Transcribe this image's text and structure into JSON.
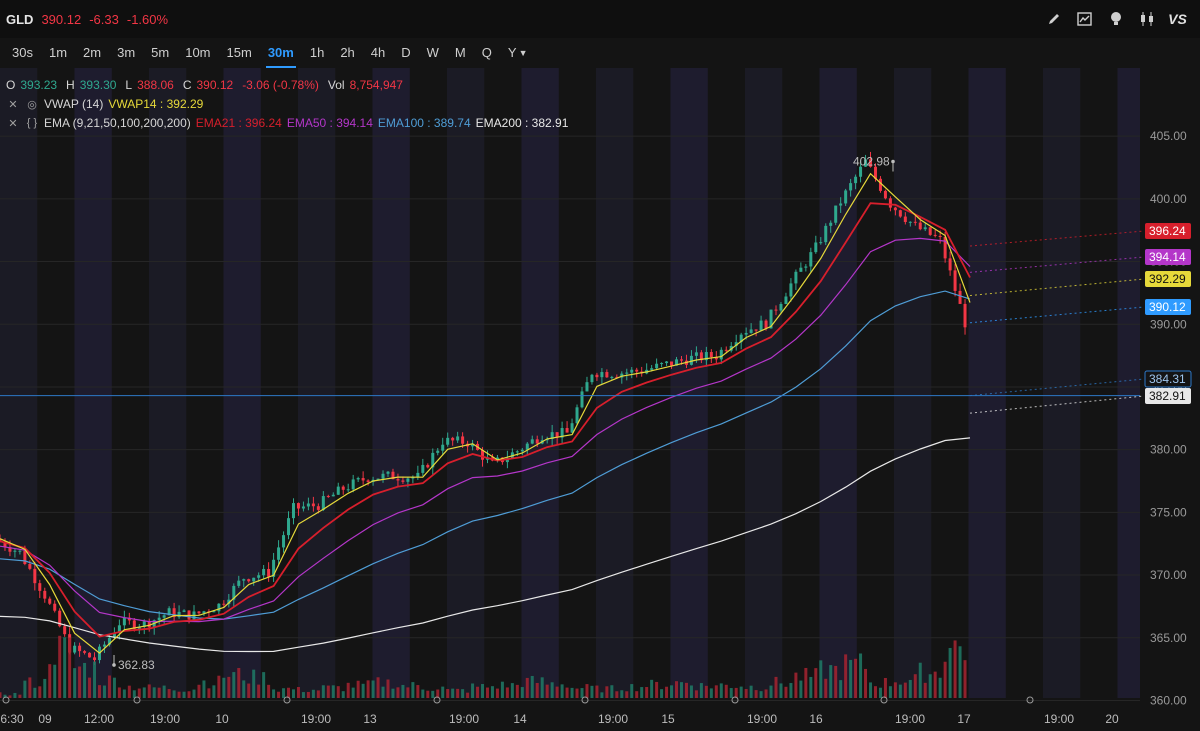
{
  "header": {
    "symbol": "GLD",
    "last": "390.12",
    "change": "-6.33",
    "change_pct": "-1.60%",
    "right_icons": [
      "pencil-icon",
      "line-chart-icon",
      "lightbulb-icon",
      "candlestick-icon"
    ],
    "vs_label": "VS"
  },
  "timeframes": [
    {
      "label": "30s"
    },
    {
      "label": "1m"
    },
    {
      "label": "2m"
    },
    {
      "label": "3m"
    },
    {
      "label": "5m"
    },
    {
      "label": "10m"
    },
    {
      "label": "15m"
    },
    {
      "label": "30m",
      "active": true
    },
    {
      "label": "1h"
    },
    {
      "label": "2h"
    },
    {
      "label": "4h"
    },
    {
      "label": "D"
    },
    {
      "label": "W"
    },
    {
      "label": "M"
    },
    {
      "label": "Q"
    },
    {
      "label": "Y"
    }
  ],
  "legend": {
    "o_label": "O",
    "o": "393.23",
    "h_label": "H",
    "h": "393.30",
    "l_label": "L",
    "l": "388.06",
    "c_label": "C",
    "c": "390.12",
    "chg": "-3.06 (-0.78%)",
    "vol_label": "Vol",
    "vol": "8,754,947",
    "vwap_name": "VWAP (14)",
    "vwap_val": "VWAP14 : 392.29",
    "ema_name": "EMA (9,21,50,100,200,200)",
    "ema21": "EMA21 : 396.24",
    "ema50": "EMA50 : 394.14",
    "ema100": "EMA100 : 389.74",
    "ema200": "EMA200 : 382.91"
  },
  "colors": {
    "up": "#2fa88e",
    "down": "#f23645",
    "vwap": "#e6d93a",
    "ema21": "#d71f2c",
    "ema50": "#b436c9",
    "ema100": "#4f9dd6",
    "ema200": "#e8e8e8",
    "hline": "#2d79c7"
  },
  "chart_data": {
    "type": "line",
    "symbol": "GLD",
    "interval": "30m",
    "y_ticks": [
      405,
      400,
      395,
      390,
      385,
      380,
      375,
      370,
      365,
      360
    ],
    "ylim": [
      359,
      409
    ],
    "x_labels": [
      "6:30",
      "09",
      "12:00",
      "19:00",
      "10",
      "19:00",
      "13",
      "19:00",
      "14",
      "19:00",
      "15",
      "19:00",
      "16",
      "19:00",
      "17",
      "19:00",
      "20"
    ],
    "price_markers": [
      {
        "label": "396.24",
        "value": 396.24,
        "color": "#d71f2c"
      },
      {
        "label": "394.14",
        "value": 394.14,
        "color": "#b436c9"
      },
      {
        "label": "392.29",
        "value": 392.29,
        "color": "#e6d93a"
      },
      {
        "label": "390.12",
        "value": 390.12,
        "color": "#2f9bff"
      },
      {
        "label": "384.31",
        "value": 384.31,
        "color": "#2d79c7"
      },
      {
        "label": "382.91",
        "value": 382.91,
        "color": "#e8e8e8"
      }
    ],
    "annotations": [
      {
        "label": "402.98",
        "value": 402.98
      },
      {
        "label": "362.83",
        "value": 362.83
      }
    ],
    "sessions": [
      {
        "day": "09",
        "close": [
          372.9,
          371.8,
          368.4,
          364.2,
          363.3,
          366.2
        ],
        "volume": [
          0.12,
          0.08,
          0.3,
          0.95,
          0.6,
          0.35
        ]
      },
      {
        "day": "10",
        "close": [
          366.1,
          367.0,
          366.8,
          367.6,
          369.8,
          370.2
        ],
        "volume": [
          0.22,
          0.2,
          0.18,
          0.32,
          0.45,
          0.4
        ]
      },
      {
        "day": "13",
        "close": [
          375.3,
          375.6,
          376.9,
          377.8,
          377.9,
          377.8
        ],
        "volume": [
          0.18,
          0.16,
          0.2,
          0.25,
          0.3,
          0.24
        ]
      },
      {
        "day": "14",
        "close": [
          380.7,
          380.6,
          378.8,
          379.9,
          381.2,
          381.3
        ],
        "volume": [
          0.2,
          0.15,
          0.22,
          0.25,
          0.32,
          0.28
        ]
      },
      {
        "day": "15",
        "close": [
          386.2,
          386.1,
          386.3,
          386.8,
          387.3,
          387.5
        ],
        "volume": [
          0.2,
          0.18,
          0.22,
          0.26,
          0.3,
          0.24
        ]
      },
      {
        "day": "16",
        "close": [
          389.4,
          390.1,
          393.2,
          396.1,
          399.8,
          402.98
        ],
        "volume": [
          0.25,
          0.22,
          0.3,
          0.42,
          0.55,
          0.65
        ]
      },
      {
        "day": "17",
        "close": [
          399.6,
          397.8,
          396.7,
          390.12
        ],
        "volume": [
          0.3,
          0.35,
          0.5,
          1.0
        ]
      }
    ],
    "series": [
      {
        "name": "VWAP14",
        "last": 392.29
      },
      {
        "name": "EMA21",
        "last": 396.24
      },
      {
        "name": "EMA50",
        "last": 394.14
      },
      {
        "name": "EMA100",
        "last": 389.74
      },
      {
        "name": "EMA200",
        "last": 382.91
      }
    ],
    "hline": 384.31
  }
}
